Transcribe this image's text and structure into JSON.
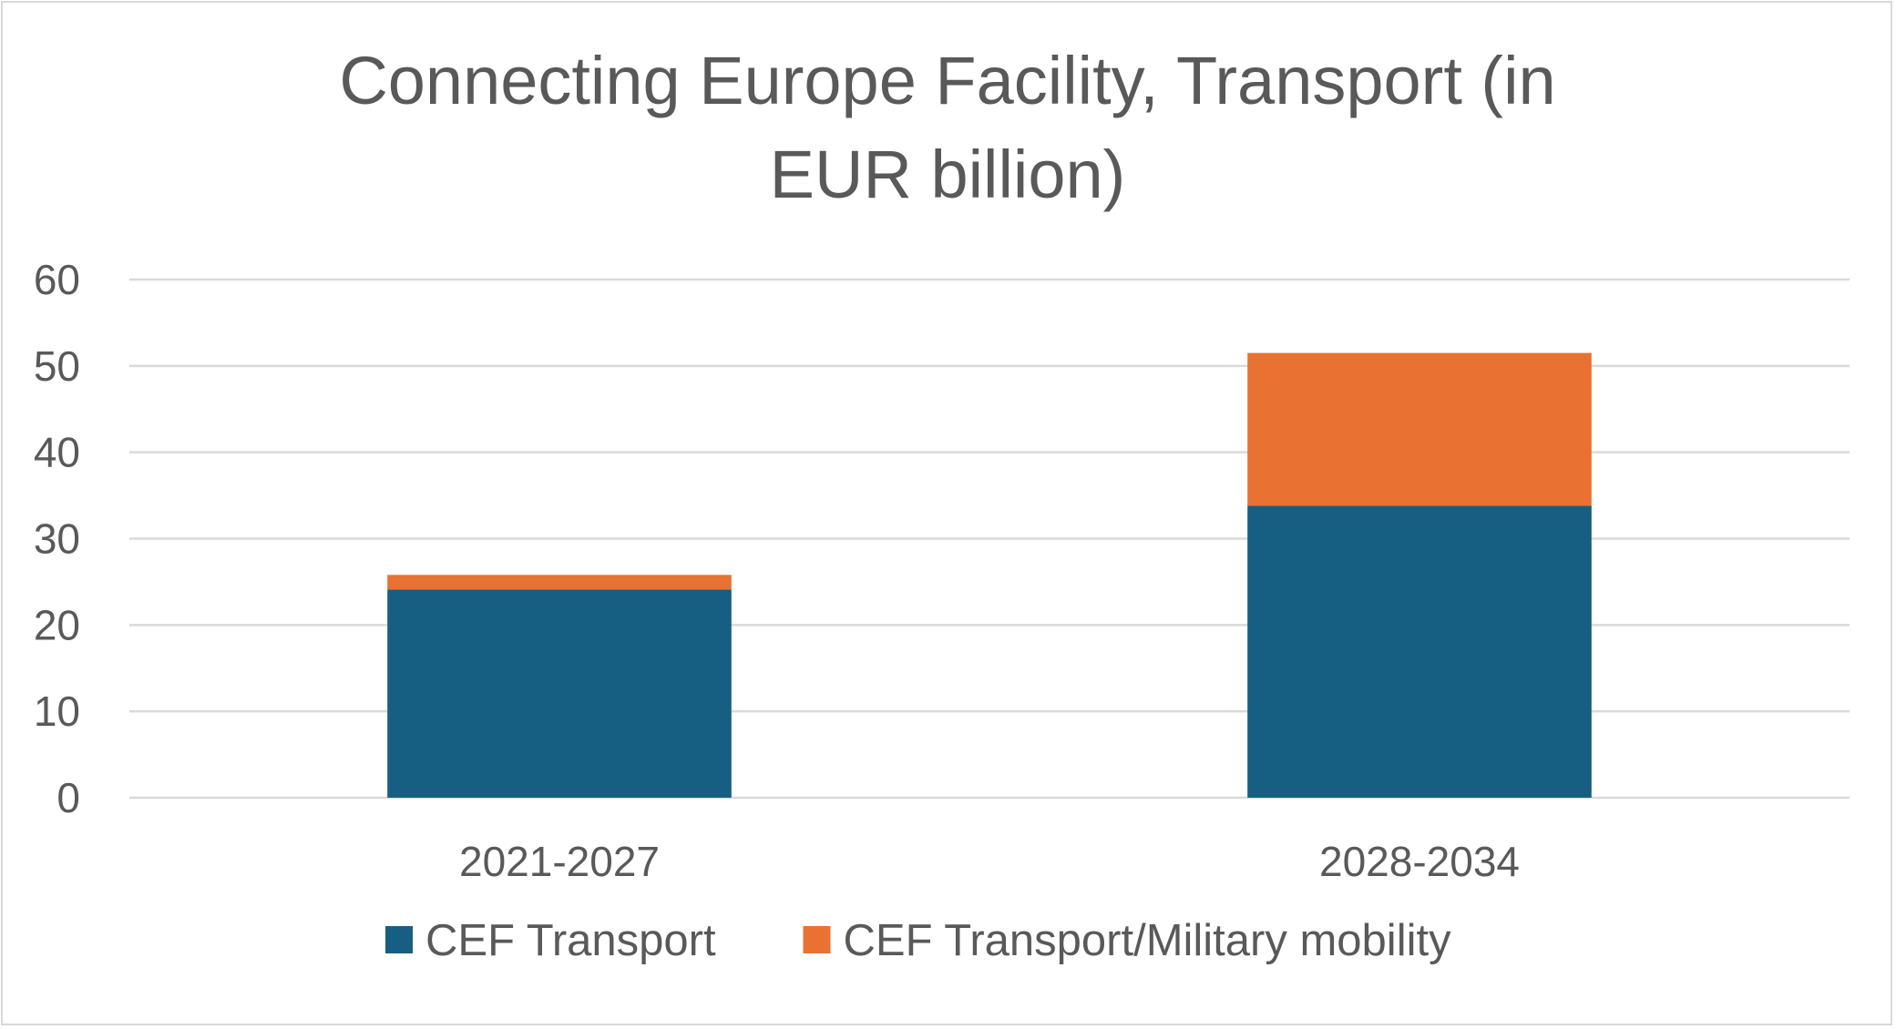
{
  "chart_data": {
    "type": "bar",
    "stacked": true,
    "title_lines": [
      "Connecting Europe Facility, Transport (in",
      "EUR billion)"
    ],
    "categories": [
      "2021-2027",
      "2028-2034"
    ],
    "series": [
      {
        "name": "CEF Transport",
        "values": [
          24.1,
          33.8
        ],
        "color": "#175f82"
      },
      {
        "name": "CEF Transport/Military mobility",
        "values": [
          1.7,
          17.7
        ],
        "color": "#e97132"
      }
    ],
    "ylim": [
      0,
      60
    ],
    "yticks": [
      "0",
      "10",
      "20",
      "30",
      "40",
      "50",
      "60"
    ],
    "xlabel": "",
    "ylabel": "",
    "grid": true,
    "legend_position": "bottom"
  }
}
